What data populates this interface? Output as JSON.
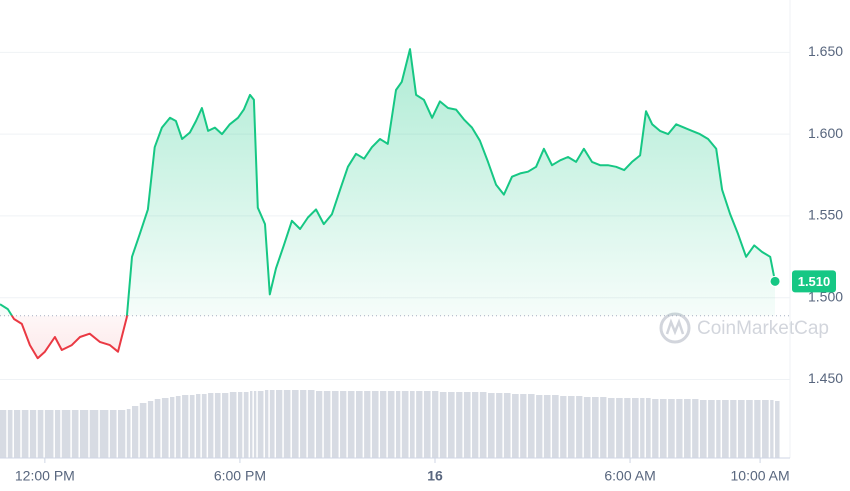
{
  "chart_data": {
    "type": "line",
    "watermark": "CoinMarketCap",
    "x": [
      10.62,
      10.86,
      11.05,
      11.29,
      11.54,
      11.78,
      12.0,
      12.31,
      12.52,
      12.83,
      13.08,
      13.38,
      13.69,
      14.0,
      14.25,
      14.52,
      14.68,
      14.92,
      15.17,
      15.38,
      15.6,
      15.85,
      16.03,
      16.22,
      16.46,
      16.65,
      16.83,
      17.02,
      17.23,
      17.45,
      17.69,
      17.94,
      18.12,
      18.31,
      18.43,
      18.55,
      18.77,
      18.92,
      19.11,
      19.35,
      19.6,
      19.85,
      20.09,
      20.34,
      20.58,
      20.83,
      21.08,
      21.32,
      21.57,
      21.82,
      22.06,
      22.31,
      22.55,
      22.8,
      22.98,
      23.23,
      23.42,
      23.66,
      23.91,
      24.15,
      24.4,
      24.65,
      24.89,
      25.14,
      25.38,
      25.63,
      25.88,
      26.12,
      26.37,
      26.62,
      26.86,
      27.11,
      27.35,
      27.6,
      27.85,
      28.09,
      28.34,
      28.58,
      28.83,
      29.08,
      29.32,
      29.57,
      29.82,
      30.06,
      30.31,
      30.49,
      30.68,
      30.92,
      31.17,
      31.42,
      31.66,
      31.91,
      32.15,
      32.4,
      32.65,
      32.83,
      33.08,
      33.32,
      33.57,
      33.82,
      34.06,
      34.31,
      34.46
    ],
    "values": [
      1.496,
      1.493,
      1.487,
      1.484,
      1.471,
      1.463,
      1.467,
      1.476,
      1.468,
      1.471,
      1.476,
      1.478,
      1.473,
      1.471,
      1.467,
      1.488,
      1.525,
      1.539,
      1.554,
      1.592,
      1.604,
      1.61,
      1.608,
      1.597,
      1.601,
      1.608,
      1.616,
      1.602,
      1.604,
      1.6,
      1.606,
      1.61,
      1.615,
      1.624,
      1.621,
      1.555,
      1.545,
      1.502,
      1.518,
      1.532,
      1.547,
      1.542,
      1.549,
      1.554,
      1.545,
      1.551,
      1.566,
      1.58,
      1.588,
      1.585,
      1.592,
      1.597,
      1.594,
      1.627,
      1.632,
      1.652,
      1.624,
      1.621,
      1.61,
      1.62,
      1.616,
      1.615,
      1.609,
      1.604,
      1.596,
      1.583,
      1.569,
      1.563,
      1.574,
      1.576,
      1.577,
      1.58,
      1.591,
      1.581,
      1.584,
      1.586,
      1.583,
      1.591,
      1.583,
      1.581,
      1.581,
      1.58,
      1.578,
      1.583,
      1.587,
      1.614,
      1.606,
      1.602,
      1.6,
      1.606,
      1.604,
      1.602,
      1.6,
      1.597,
      1.591,
      1.566,
      1.551,
      1.539,
      1.525,
      1.532,
      1.528,
      1.525,
      1.51
    ],
    "value_labels": {
      "102": "1.510"
    },
    "volume": [
      48,
      48,
      48,
      48,
      48,
      48,
      48,
      48,
      48,
      48,
      48,
      48,
      48,
      48,
      48,
      49,
      52,
      55,
      57,
      59,
      60,
      61,
      62,
      63,
      63,
      64,
      64,
      65,
      65,
      65,
      66,
      66,
      66,
      67,
      67,
      67,
      68,
      68,
      68,
      68,
      68,
      68,
      68,
      67,
      67,
      67,
      67,
      67,
      67,
      67,
      67,
      67,
      67,
      67,
      67,
      67,
      67,
      67,
      67,
      66,
      66,
      66,
      66,
      66,
      66,
      65,
      65,
      65,
      64,
      64,
      64,
      63,
      63,
      63,
      62,
      62,
      62,
      61,
      61,
      61,
      60,
      60,
      60,
      60,
      60,
      60,
      59,
      59,
      59,
      59,
      59,
      59,
      58,
      58,
      58,
      58,
      58,
      58,
      58,
      58,
      58,
      58,
      57
    ],
    "baseline": 1.489,
    "up_color": "#16c784",
    "down_color": "#ea3943",
    "volume_color": "#d7dbe3",
    "xlim": [
      10.62,
      34.92
    ],
    "xticks": [
      {
        "value": 12,
        "label": "12:00 PM"
      },
      {
        "value": 18,
        "label": "6:00 PM"
      },
      {
        "value": 24,
        "label": "16"
      },
      {
        "value": 30,
        "label": "6:00 AM"
      },
      {
        "value": 34,
        "label": "10:00 AM"
      }
    ],
    "ylim": [
      1.402,
      1.682
    ],
    "yticks": [
      {
        "value": 1.45,
        "label": "1.450"
      },
      {
        "value": 1.5,
        "label": "1.500"
      },
      {
        "value": 1.55,
        "label": "1.550"
      },
      {
        "value": 1.6,
        "label": "1.600"
      },
      {
        "value": 1.65,
        "label": "1.650"
      }
    ],
    "grid": true
  }
}
